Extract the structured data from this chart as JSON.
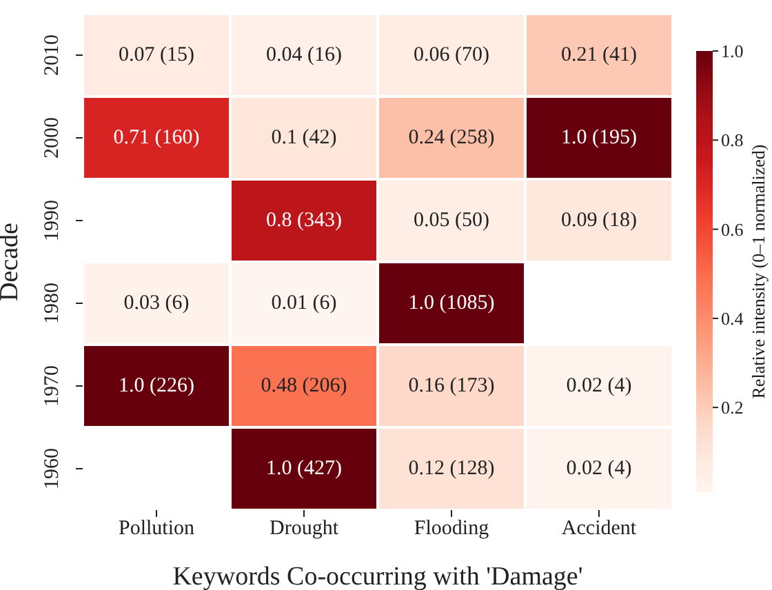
{
  "chart_data": {
    "type": "heatmap",
    "xlabel": "Keywords Co-occurring with 'Damage'",
    "ylabel": "Decade",
    "clabel": "Relative intensity (0–1 normalized)",
    "categories": [
      "Pollution",
      "Drought",
      "Flooding",
      "Accident"
    ],
    "y_categories": [
      "2010",
      "2000",
      "1990",
      "1980",
      "1970",
      "1960"
    ],
    "cells": [
      [
        0.07,
        0.04,
        0.06,
        0.21
      ],
      [
        0.71,
        0.1,
        0.24,
        1.0
      ],
      [
        null,
        0.8,
        0.05,
        0.09
      ],
      [
        0.03,
        0.01,
        1.0,
        null
      ],
      [
        1.0,
        0.48,
        0.16,
        0.02
      ],
      [
        null,
        1.0,
        0.12,
        0.02
      ]
    ],
    "cell_labels": [
      [
        "0.07 (15)",
        "0.04 (16)",
        "0.06 (70)",
        "0.21 (41)"
      ],
      [
        "0.71 (160)",
        "0.1 (42)",
        "0.24 (258)",
        "1.0 (195)"
      ],
      [
        null,
        "0.8 (343)",
        "0.05 (50)",
        "0.09 (18)"
      ],
      [
        "0.03 (6)",
        "0.01 (6)",
        "1.0 (1085)",
        null
      ],
      [
        "1.0 (226)",
        "0.48 (206)",
        "0.16 (173)",
        "0.02 (4)"
      ],
      [
        null,
        "1.0 (427)",
        "0.12 (128)",
        "0.02 (4)"
      ]
    ],
    "clim": [
      0.01,
      1.0
    ],
    "cticks": [
      0.2,
      0.4,
      0.6,
      0.8,
      {
        "value": 1.0,
        "label": "1.0"
      }
    ]
  }
}
